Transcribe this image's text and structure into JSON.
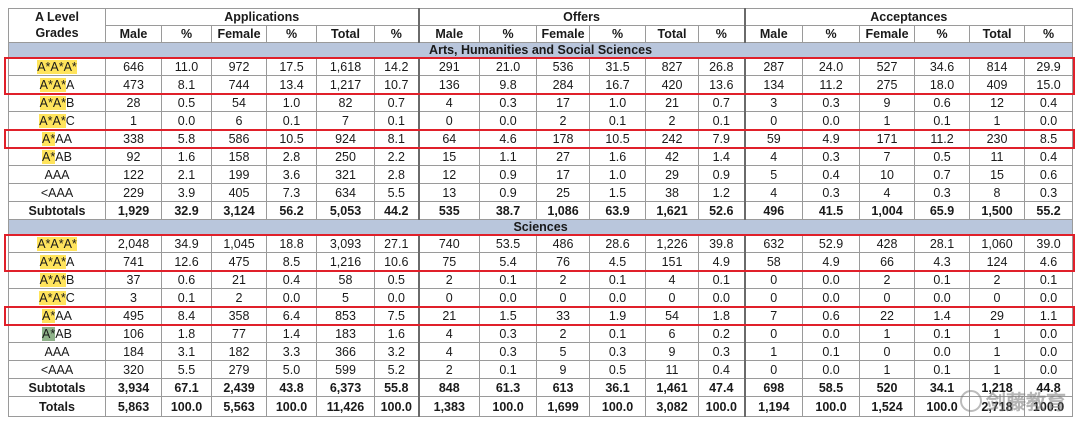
{
  "header": {
    "grade_label_line1": "A Level",
    "grade_label_line2": "Grades",
    "groups": [
      "Applications",
      "Offers",
      "Acceptances"
    ],
    "columns": [
      "Male",
      "%",
      "Female",
      "%",
      "Total",
      "%"
    ]
  },
  "sections": [
    {
      "title": "Arts, Humanities and Social Sciences",
      "rows": [
        {
          "grade": "A*A*A*",
          "hl": "A*A*A*",
          "rest": "",
          "values": [
            "646",
            "11.0",
            "972",
            "17.5",
            "1,618",
            "14.2",
            "291",
            "21.0",
            "536",
            "31.5",
            "827",
            "26.8",
            "287",
            "24.0",
            "527",
            "34.6",
            "814",
            "29.9"
          ]
        },
        {
          "grade": "A*A*A",
          "hl": "A*A*",
          "rest": "A",
          "values": [
            "473",
            "8.1",
            "744",
            "13.4",
            "1,217",
            "10.7",
            "136",
            "9.8",
            "284",
            "16.7",
            "420",
            "13.6",
            "134",
            "11.2",
            "275",
            "18.0",
            "409",
            "15.0"
          ]
        },
        {
          "grade": "A*A*B",
          "hl": "A*A*",
          "rest": "B",
          "values": [
            "28",
            "0.5",
            "54",
            "1.0",
            "82",
            "0.7",
            "4",
            "0.3",
            "17",
            "1.0",
            "21",
            "0.7",
            "3",
            "0.3",
            "9",
            "0.6",
            "12",
            "0.4"
          ]
        },
        {
          "grade": "A*A*C",
          "hl": "A*A*",
          "rest": "C",
          "values": [
            "1",
            "0.0",
            "6",
            "0.1",
            "7",
            "0.1",
            "0",
            "0.0",
            "2",
            "0.1",
            "2",
            "0.1",
            "0",
            "0.0",
            "1",
            "0.1",
            "1",
            "0.0"
          ]
        },
        {
          "grade": "A*AA",
          "hl": "A*",
          "rest": "AA",
          "values": [
            "338",
            "5.8",
            "586",
            "10.5",
            "924",
            "8.1",
            "64",
            "4.6",
            "178",
            "10.5",
            "242",
            "7.9",
            "59",
            "4.9",
            "171",
            "11.2",
            "230",
            "8.5"
          ]
        },
        {
          "grade": "A*AB",
          "hl": "A*",
          "rest": "AB",
          "values": [
            "92",
            "1.6",
            "158",
            "2.8",
            "250",
            "2.2",
            "15",
            "1.1",
            "27",
            "1.6",
            "42",
            "1.4",
            "4",
            "0.3",
            "7",
            "0.5",
            "11",
            "0.4"
          ]
        },
        {
          "grade": "AAA",
          "hl": "",
          "rest": "AAA",
          "values": [
            "122",
            "2.1",
            "199",
            "3.6",
            "321",
            "2.8",
            "12",
            "0.9",
            "17",
            "1.0",
            "29",
            "0.9",
            "5",
            "0.4",
            "10",
            "0.7",
            "15",
            "0.6"
          ]
        },
        {
          "grade": "<AAA",
          "hl": "",
          "rest": "<AAA",
          "values": [
            "229",
            "3.9",
            "405",
            "7.3",
            "634",
            "5.5",
            "13",
            "0.9",
            "25",
            "1.5",
            "38",
            "1.2",
            "4",
            "0.3",
            "4",
            "0.3",
            "8",
            "0.3"
          ]
        }
      ],
      "subtotal": {
        "label": "Subtotals",
        "values": [
          "1,929",
          "32.9",
          "3,124",
          "56.2",
          "5,053",
          "44.2",
          "535",
          "38.7",
          "1,086",
          "63.9",
          "1,621",
          "52.6",
          "496",
          "41.5",
          "1,004",
          "65.9",
          "1,500",
          "55.2"
        ]
      }
    },
    {
      "title": "Sciences",
      "rows": [
        {
          "grade": "A*A*A*",
          "hl": "A*A*A*",
          "rest": "",
          "values": [
            "2,048",
            "34.9",
            "1,045",
            "18.8",
            "3,093",
            "27.1",
            "740",
            "53.5",
            "486",
            "28.6",
            "1,226",
            "39.8",
            "632",
            "52.9",
            "428",
            "28.1",
            "1,060",
            "39.0"
          ]
        },
        {
          "grade": "A*A*A",
          "hl": "A*A*",
          "rest": "A",
          "values": [
            "741",
            "12.6",
            "475",
            "8.5",
            "1,216",
            "10.6",
            "75",
            "5.4",
            "76",
            "4.5",
            "151",
            "4.9",
            "58",
            "4.9",
            "66",
            "4.3",
            "124",
            "4.6"
          ]
        },
        {
          "grade": "A*A*B",
          "hl": "A*A*",
          "rest": "B",
          "values": [
            "37",
            "0.6",
            "21",
            "0.4",
            "58",
            "0.5",
            "2",
            "0.1",
            "2",
            "0.1",
            "4",
            "0.1",
            "0",
            "0.0",
            "2",
            "0.1",
            "2",
            "0.1"
          ]
        },
        {
          "grade": "A*A*C",
          "hl": "A*A*",
          "rest": "C",
          "values": [
            "3",
            "0.1",
            "2",
            "0.0",
            "5",
            "0.0",
            "0",
            "0.0",
            "0",
            "0.0",
            "0",
            "0.0",
            "0",
            "0.0",
            "0",
            "0.0",
            "0",
            "0.0"
          ]
        },
        {
          "grade": "A*AA",
          "hl": "A*",
          "rest": "AA",
          "values": [
            "495",
            "8.4",
            "358",
            "6.4",
            "853",
            "7.5",
            "21",
            "1.5",
            "33",
            "1.9",
            "54",
            "1.8",
            "7",
            "0.6",
            "22",
            "1.4",
            "29",
            "1.1"
          ]
        },
        {
          "grade": "A*AB",
          "hl": "A*",
          "rest": "AB",
          "values": [
            "106",
            "1.8",
            "77",
            "1.4",
            "183",
            "1.6",
            "4",
            "0.3",
            "2",
            "0.1",
            "6",
            "0.2",
            "0",
            "0.0",
            "1",
            "0.1",
            "1",
            "0.0"
          ]
        },
        {
          "grade": "AAA",
          "hl": "",
          "rest": "AAA",
          "values": [
            "184",
            "3.1",
            "182",
            "3.3",
            "366",
            "3.2",
            "4",
            "0.3",
            "5",
            "0.3",
            "9",
            "0.3",
            "1",
            "0.1",
            "0",
            "0.0",
            "1",
            "0.0"
          ]
        },
        {
          "grade": "<AAA",
          "hl": "",
          "rest": "<AAA",
          "values": [
            "320",
            "5.5",
            "279",
            "5.0",
            "599",
            "5.2",
            "2",
            "0.1",
            "9",
            "0.5",
            "11",
            "0.4",
            "0",
            "0.0",
            "1",
            "0.1",
            "1",
            "0.0"
          ]
        }
      ],
      "subtotal": {
        "label": "Subtotals",
        "values": [
          "3,934",
          "67.1",
          "2,439",
          "43.8",
          "6,373",
          "55.8",
          "848",
          "61.3",
          "613",
          "36.1",
          "1,461",
          "47.4",
          "698",
          "58.5",
          "520",
          "34.1",
          "1,218",
          "44.8"
        ]
      }
    }
  ],
  "totals": {
    "label": "Totals",
    "values": [
      "5,863",
      "100.0",
      "5,563",
      "100.0",
      "11,426",
      "100.0",
      "1,383",
      "100.0",
      "1,699",
      "100.0",
      "3,082",
      "100.0",
      "1,194",
      "100.0",
      "1,524",
      "100.0",
      "2,718",
      "100.0"
    ]
  },
  "watermark": {
    "text": "剑藤教育",
    "icon": "wechat-icon"
  },
  "colors": {
    "highlight": "#ffe45c",
    "section_band": "#b9c6dc",
    "frame": "#e0202a"
  }
}
